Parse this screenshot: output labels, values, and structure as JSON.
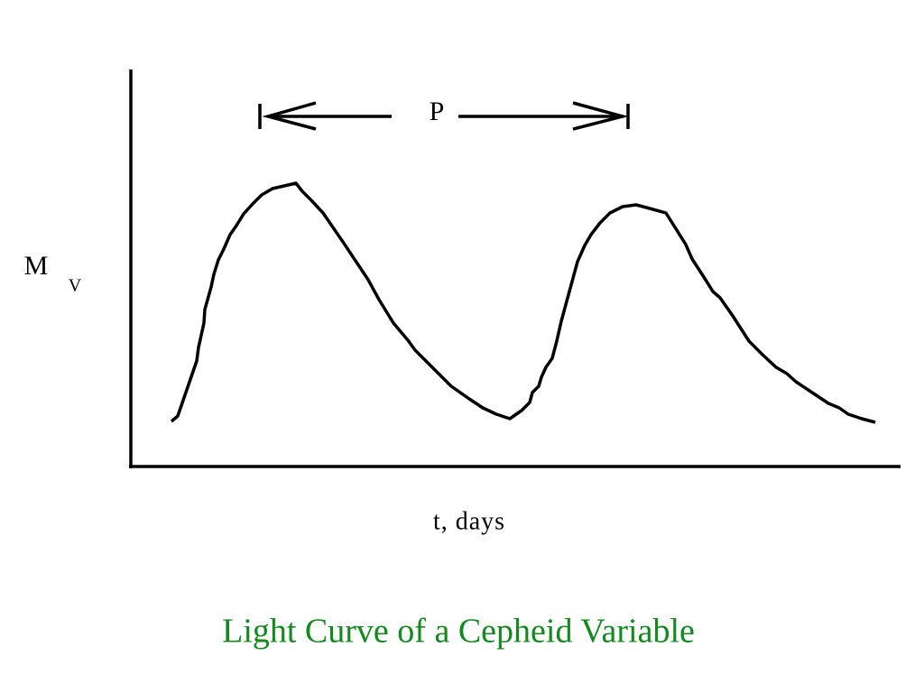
{
  "period_label": "P",
  "y_axis_label": {
    "main": "M",
    "subscript": "V"
  },
  "x_axis_label": "t, days",
  "title": "Light Curve of a Cepheid Variable"
}
